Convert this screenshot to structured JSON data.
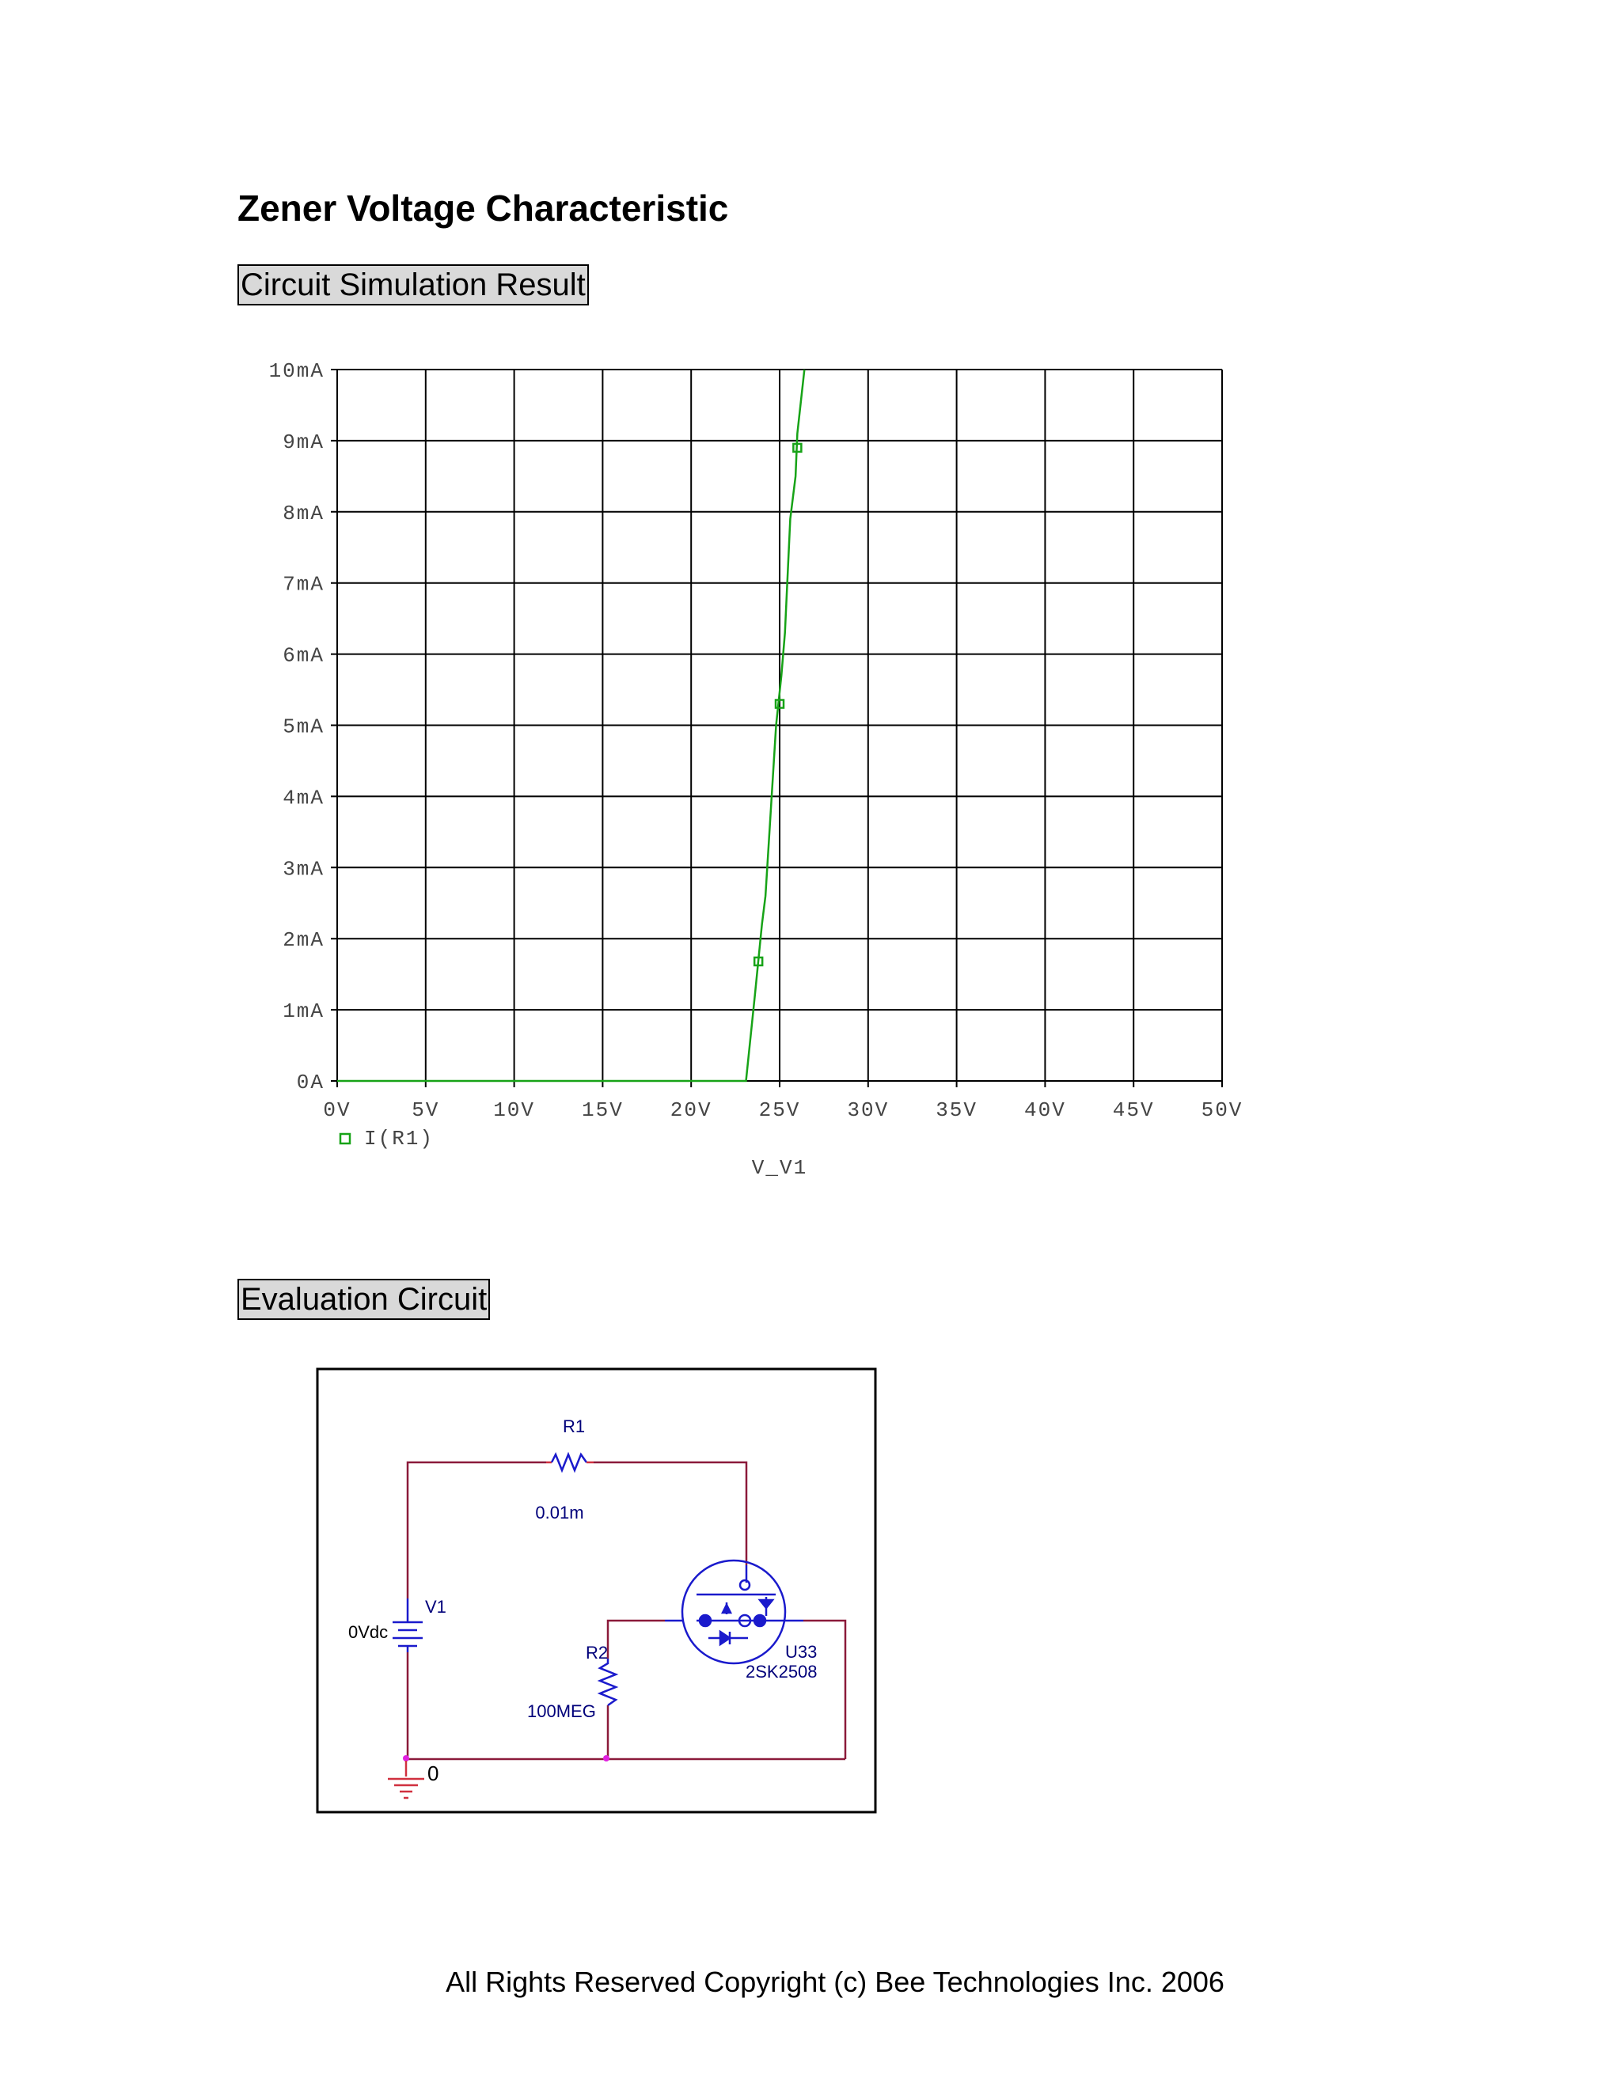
{
  "page": {
    "title": "Zener Voltage Characteristic",
    "section_result": "Circuit Simulation Result",
    "section_circuit": "Evaluation Circuit",
    "footer": "All Rights Reserved Copyright (c) Bee Technologies Inc. 2006"
  },
  "chart_data": {
    "type": "line",
    "xlabel": "V_V1",
    "ylabel": "",
    "xlim": [
      0,
      50
    ],
    "ylim": [
      0,
      10
    ],
    "x_ticks": [
      "0V",
      "5V",
      "10V",
      "15V",
      "20V",
      "25V",
      "30V",
      "35V",
      "40V",
      "45V",
      "50V"
    ],
    "y_ticks": [
      "0A",
      "1mA",
      "2mA",
      "3mA",
      "4mA",
      "5mA",
      "6mA",
      "7mA",
      "8mA",
      "9mA",
      "10mA"
    ],
    "grid": true,
    "legend_position": "bottom-left",
    "series": [
      {
        "name": "I(R1)",
        "color": "#17a317",
        "x": [
          0,
          23.1,
          23.6,
          24.0,
          24.2,
          24.8,
          25.1,
          25.3,
          25.6,
          25.9,
          26.0,
          26.4
        ],
        "y": [
          0,
          0,
          1.2,
          2.2,
          2.6,
          5.0,
          5.7,
          6.3,
          7.9,
          8.5,
          9.1,
          10.0
        ],
        "markers": [
          [
            23.8,
            1.68
          ],
          [
            25.0,
            5.3
          ],
          [
            26.0,
            8.9
          ]
        ]
      }
    ]
  },
  "circuit": {
    "r1_label": "R1",
    "r1_value": "0.01m",
    "v1_label": "V1",
    "v1_value": "0Vdc",
    "r2_label": "R2",
    "r2_value": "100MEG",
    "u_label": "U33",
    "u_part": "2SK2508",
    "ground_label": "0",
    "colors": {
      "wire": "#8b1a3a",
      "component": "#1a1acc",
      "text": "#00007a",
      "node": "#e020e0"
    }
  }
}
